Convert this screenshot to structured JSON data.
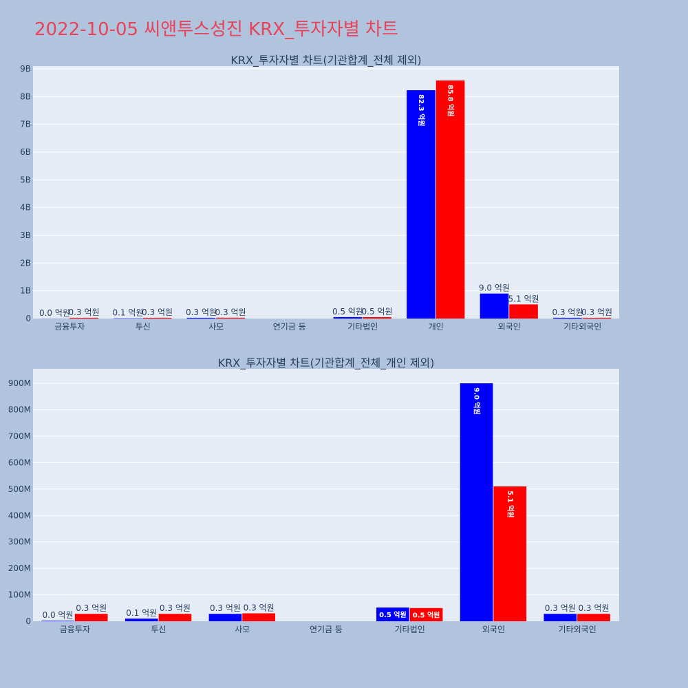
{
  "page": {
    "title": "2022-10-05 씨앤투스성진 KRX_투자자별 차트"
  },
  "colors": {
    "buy": "#0000ff",
    "sell": "#ff0000",
    "title": "#e8435a"
  },
  "chart_data": [
    {
      "type": "bar",
      "title": "KRX_투자자별 차트(기관합계_전체 제외)",
      "categories": [
        "금융투자",
        "투신",
        "사모",
        "연기금 등",
        "기타법인",
        "개인",
        "외국인",
        "기타외국인"
      ],
      "ylim": [
        0,
        9100000000
      ],
      "yticks": [
        0,
        1000000000,
        2000000000,
        3000000000,
        4000000000,
        5000000000,
        6000000000,
        7000000000,
        8000000000,
        9000000000
      ],
      "ytick_labels": [
        "0",
        "1B",
        "2B",
        "3B",
        "4B",
        "5B",
        "6B",
        "7B",
        "8B",
        "9B"
      ],
      "grid": true,
      "series": [
        {
          "values": [
            2000000,
            10000000,
            28000000,
            0,
            52000000,
            8230000000,
            900000000,
            28000000
          ],
          "labels": [
            "0.0 억원",
            "0.1 억원",
            "0.3 억원",
            "",
            "0.5 억원",
            "82.3 억원",
            "9.0 억원",
            "0.3 억원"
          ]
        },
        {
          "values": [
            28000000,
            28000000,
            30000000,
            0,
            50000000,
            8580000000,
            510000000,
            28000000
          ],
          "labels": [
            "0.3 억원",
            "0.3 억원",
            "0.3 억원",
            "",
            "0.5 억원",
            "85.8 억원",
            "5.1 억원",
            "0.3 억원"
          ]
        }
      ]
    },
    {
      "type": "bar",
      "title": "KRX_투자자별 차트(기관합계_전체_개인 제외)",
      "categories": [
        "금융투자",
        "투신",
        "사모",
        "연기금 등",
        "기타법인",
        "외국인",
        "기타외국인"
      ],
      "ylim": [
        0,
        955000000
      ],
      "yticks": [
        0,
        100000000,
        200000000,
        300000000,
        400000000,
        500000000,
        600000000,
        700000000,
        800000000,
        900000000
      ],
      "ytick_labels": [
        "0",
        "100M",
        "200M",
        "300M",
        "400M",
        "500M",
        "600M",
        "700M",
        "800M",
        "900M"
      ],
      "grid": true,
      "series": [
        {
          "values": [
            2000000,
            10000000,
            28000000,
            0,
            52000000,
            900000000,
            28000000
          ],
          "labels": [
            "0.0 억원",
            "0.1 억원",
            "0.3 억원",
            "",
            "0.5 억원",
            "9.0 억원",
            "0.3 억원"
          ]
        },
        {
          "values": [
            28000000,
            28000000,
            30000000,
            0,
            50000000,
            510000000,
            28000000
          ],
          "labels": [
            "0.3 억원",
            "0.3 억원",
            "0.3 억원",
            "",
            "0.5 억원",
            "5.1 억원",
            "0.3 억원"
          ]
        }
      ]
    }
  ]
}
